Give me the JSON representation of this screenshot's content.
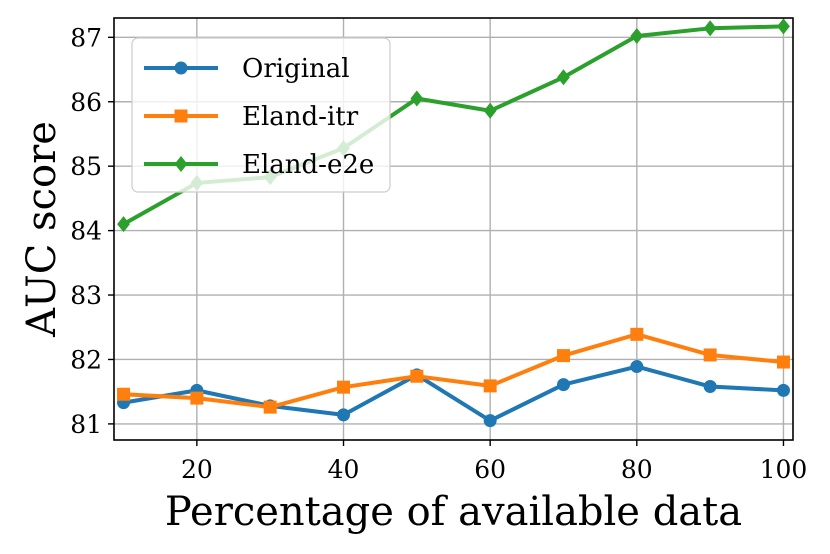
{
  "chart_data": {
    "type": "line",
    "xlabel": "Percentage of available data",
    "ylabel": "AUC score",
    "xlim": [
      8.7,
      101.3
    ],
    "ylim": [
      80.75,
      87.3
    ],
    "xticks": [
      20,
      40,
      60,
      80,
      100
    ],
    "yticks": [
      81,
      82,
      83,
      84,
      85,
      86,
      87
    ],
    "grid": true,
    "legend_position": "top-left",
    "x": [
      10,
      20,
      30,
      40,
      50,
      60,
      70,
      80,
      90,
      100
    ],
    "series": [
      {
        "name": "Original",
        "color": "#1f77b4",
        "marker": "circle",
        "values": [
          81.33,
          81.52,
          81.28,
          81.14,
          81.76,
          81.05,
          81.61,
          81.89,
          81.58,
          81.52
        ]
      },
      {
        "name": "Eland-itr",
        "color": "#ff7f0e",
        "marker": "square",
        "values": [
          81.46,
          81.4,
          81.26,
          81.57,
          81.74,
          81.59,
          82.06,
          82.39,
          82.07,
          81.96
        ]
      },
      {
        "name": "Eland-e2e",
        "color": "#2ca02c",
        "marker": "diamond",
        "values": [
          84.1,
          84.74,
          84.83,
          85.28,
          86.05,
          85.86,
          86.38,
          87.02,
          87.14,
          87.17
        ]
      }
    ]
  }
}
